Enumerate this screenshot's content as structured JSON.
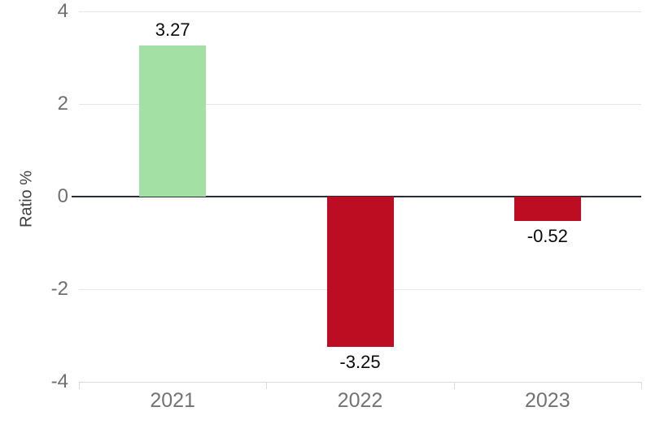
{
  "chart_data": {
    "type": "bar",
    "title": "",
    "xlabel": "",
    "ylabel": "Ratio %",
    "categories": [
      "2021",
      "2022",
      "2023"
    ],
    "values": [
      3.27,
      -3.25,
      -0.52
    ],
    "value_labels": [
      "3.27",
      "-3.25",
      "-0.52"
    ],
    "yticks": [
      4,
      2,
      0,
      -2,
      -4
    ],
    "ytick_labels": [
      "4",
      "2",
      "0",
      "-2",
      "-4"
    ],
    "ylim": [
      -4,
      4
    ],
    "grid": "horizontal",
    "legend": "none",
    "colors": {
      "positive_bar": "#a3e0a3",
      "negative_bar": "#bd0d23",
      "zero_line": "#2b2d3a",
      "gridline": "#e7e7e7",
      "axis_line": "#d8dbe0",
      "tick_label": "#6f6f6f",
      "category_label": "#737373",
      "value_label": "#0a0a0a",
      "axis_title": "#3f3f3f",
      "background": "#ffffff"
    }
  }
}
